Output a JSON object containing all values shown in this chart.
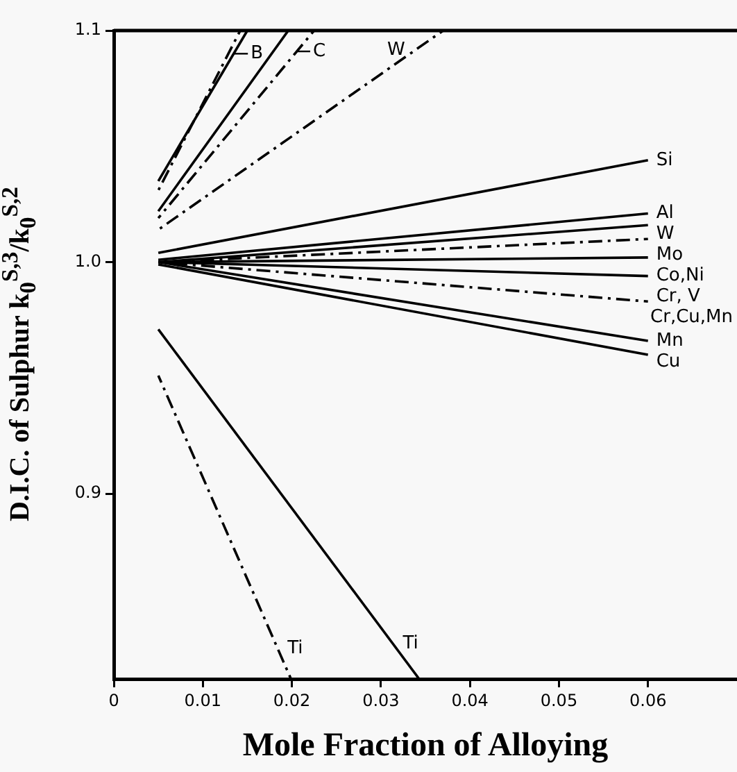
{
  "chart_data": {
    "type": "line",
    "xlabel": "Mole Fraction of Alloying",
    "ylabel": "D.I.C. of Sulphur  k$_{0}$$^{S,3}$/k$_{0}$$^{S,2}$",
    "xlim": [
      0,
      0.07
    ],
    "ylim": [
      0.82,
      1.1
    ],
    "xticks": [
      0,
      0.01,
      0.02,
      0.03,
      0.04,
      0.05,
      0.06
    ],
    "yticks": [
      0.9,
      {
        "value": 1.0,
        "label": "1.0"
      },
      1.1
    ],
    "grid": false,
    "legend": false,
    "marker": "none",
    "series": [
      {
        "color": "#000000",
        "line_style": "solid",
        "x": [
          0.005,
          0.015
        ],
        "values": [
          1.035,
          1.1
        ]
      },
      {
        "color": "#000000",
        "line_style": "dashed",
        "x": [
          0.005,
          0.0142
        ],
        "values": [
          1.031,
          1.1
        ]
      },
      {
        "color": "#000000",
        "line_style": "solid",
        "x": [
          0.005,
          0.0196
        ],
        "values": [
          1.022,
          1.1
        ]
      },
      {
        "color": "#000000",
        "line_style": "dashed",
        "x": [
          0.005,
          0.0225
        ],
        "values": [
          1.019,
          1.1
        ]
      },
      {
        "name": "W",
        "color": "#000000",
        "line_style": "dashed",
        "x": [
          0.005,
          0.037
        ],
        "values": [
          1.014,
          1.1
        ]
      },
      {
        "name": "Si",
        "color": "#000000",
        "line_style": "solid",
        "x": [
          0.005,
          0.06
        ],
        "values": [
          1.004,
          1.044
        ]
      },
      {
        "name": "Al",
        "color": "#000000",
        "line_style": "solid",
        "x": [
          0.005,
          0.06
        ],
        "values": [
          1.001,
          1.021
        ]
      },
      {
        "name": "W",
        "color": "#000000",
        "line_style": "solid",
        "x": [
          0.005,
          0.06
        ],
        "values": [
          1.0,
          1.016
        ]
      },
      {
        "name": "Mo",
        "color": "#000000",
        "line_style": "dashed",
        "x": [
          0.005,
          0.06
        ],
        "values": [
          1.0,
          1.01
        ]
      },
      {
        "name": "Co,Ni",
        "color": "#000000",
        "line_style": "solid",
        "x": [
          0.005,
          0.06
        ],
        "values": [
          1.0,
          1.002
        ]
      },
      {
        "name": "Cr, V",
        "color": "#000000",
        "line_style": "solid",
        "x": [
          0.005,
          0.06
        ],
        "values": [
          1.0,
          0.994
        ]
      },
      {
        "name": "Cr,Cu,Mn",
        "color": "#000000",
        "line_style": "dashed",
        "x": [
          0.005,
          0.06
        ],
        "values": [
          1.0,
          0.983
        ]
      },
      {
        "name": "Mn",
        "color": "#000000",
        "line_style": "solid",
        "x": [
          0.005,
          0.06
        ],
        "values": [
          1.0,
          0.966
        ]
      },
      {
        "name": "Cu",
        "color": "#000000",
        "line_style": "solid",
        "x": [
          0.005,
          0.06
        ],
        "values": [
          0.999,
          0.96
        ]
      },
      {
        "name": "Ti",
        "color": "#000000",
        "line_style": "solid",
        "x": [
          0.005,
          0.0343
        ],
        "values": [
          0.971,
          0.82
        ]
      },
      {
        "name": "Ti",
        "color": "#000000",
        "line_style": "dashed",
        "x": [
          0.005,
          0.0199
        ],
        "values": [
          0.951,
          0.82
        ]
      }
    ],
    "annotations": [
      {
        "text": "B",
        "x": 0.0135,
        "y": 1.09
      },
      {
        "text": "C",
        "x": 0.0205,
        "y": 1.091
      }
    ]
  }
}
